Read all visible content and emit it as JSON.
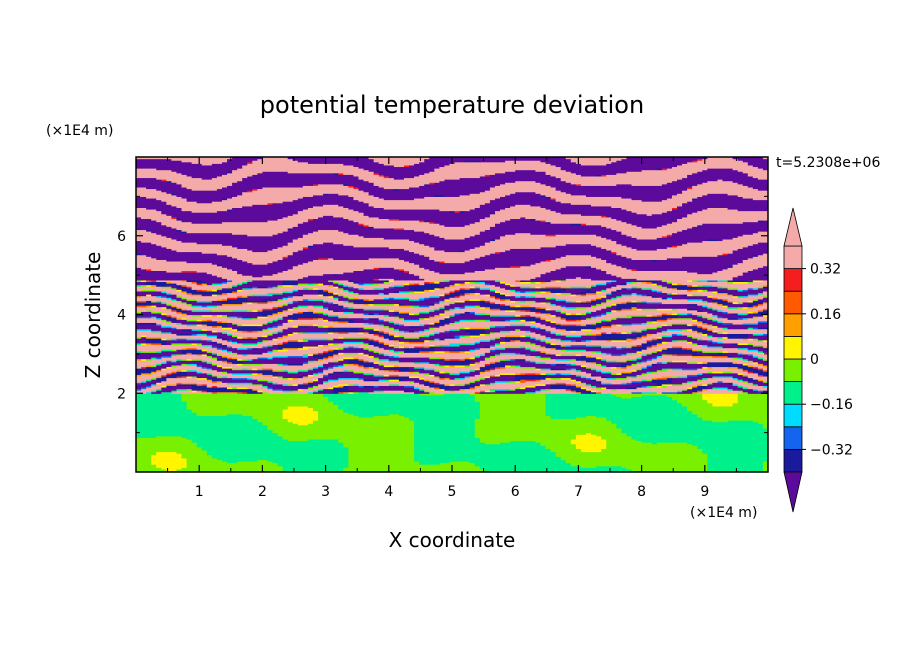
{
  "chart_data": {
    "type": "heatmap",
    "title": "potential temperature deviation",
    "xlabel": "X coordinate",
    "ylabel": "Z coordinate",
    "x_unit": "(×1E4 m)",
    "y_unit": "(×1E4 m)",
    "time_label": "t=5.2308e+06",
    "xlim": [
      0,
      10
    ],
    "ylim": [
      0,
      8
    ],
    "x_ticks": [
      "1",
      "2",
      "3",
      "4",
      "5",
      "6",
      "7",
      "8",
      "9"
    ],
    "y_ticks": [
      "2",
      "4",
      "6"
    ],
    "colorbar": {
      "levels": [
        -0.4,
        -0.32,
        -0.24,
        -0.16,
        -0.08,
        0,
        0.08,
        0.16,
        0.24,
        0.32,
        0.4
      ],
      "tick_labels": [
        "0.32",
        "0.16",
        "0",
        "−0.16",
        "−0.32"
      ],
      "tick_values": [
        0.32,
        0.16,
        0,
        -0.16,
        -0.32
      ],
      "colors": [
        "#5c0a9b",
        "#1a1a9c",
        "#1464f0",
        "#00dcff",
        "#00f08c",
        "#78f000",
        "#fff500",
        "#ffa000",
        "#ff5a00",
        "#f51e1e",
        "#f5aaaa"
      ],
      "extend": "both"
    },
    "grid": false
  }
}
